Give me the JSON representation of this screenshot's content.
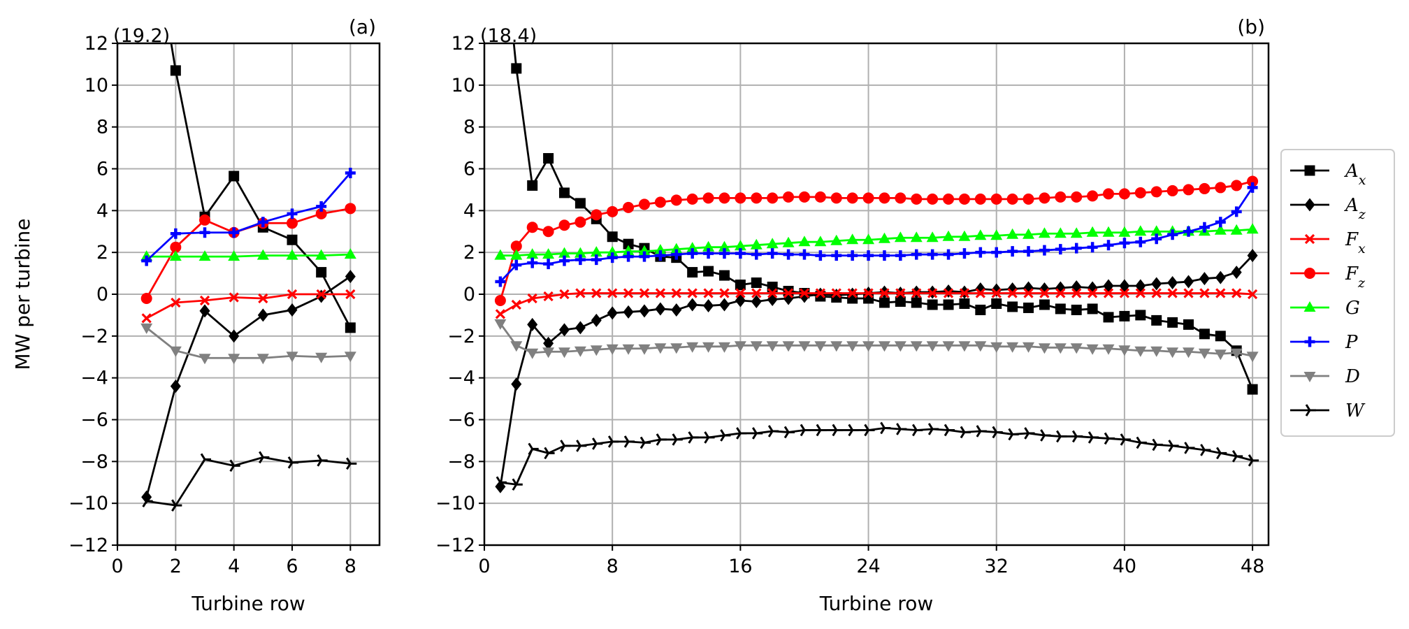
{
  "chart_data": [
    {
      "type": "line",
      "panel_label": "(a)",
      "clip_annotation": "(19.2)",
      "xlabel": "Turbine row",
      "ylabel": "MW per turbine",
      "xlim": [
        0,
        9
      ],
      "ylim": [
        -12,
        12
      ],
      "xticks": [
        0,
        2,
        4,
        6,
        8
      ],
      "yticks": [
        -12,
        -10,
        -8,
        -6,
        -4,
        -2,
        0,
        2,
        4,
        6,
        8,
        10,
        12
      ],
      "grid": true,
      "x": [
        1,
        2,
        3,
        4,
        5,
        6,
        7,
        8
      ],
      "series": [
        {
          "key": "Ax",
          "values": [
            19.2,
            10.7,
            3.7,
            5.65,
            3.2,
            2.6,
            1.05,
            -1.6
          ]
        },
        {
          "key": "Az",
          "values": [
            -9.7,
            -4.4,
            -0.8,
            -2.0,
            -1.0,
            -0.75,
            -0.1,
            0.85
          ]
        },
        {
          "key": "Fx",
          "values": [
            -1.15,
            -0.4,
            -0.3,
            -0.15,
            -0.2,
            0.0,
            0.0,
            0.0
          ]
        },
        {
          "key": "Fz",
          "values": [
            -0.2,
            2.25,
            3.55,
            2.95,
            3.4,
            3.4,
            3.85,
            4.1
          ]
        },
        {
          "key": "G",
          "values": [
            1.8,
            1.8,
            1.8,
            1.8,
            1.85,
            1.85,
            1.85,
            1.9
          ]
        },
        {
          "key": "P",
          "values": [
            1.6,
            2.9,
            2.95,
            2.95,
            3.45,
            3.85,
            4.2,
            5.8
          ]
        },
        {
          "key": "D",
          "values": [
            -1.6,
            -2.7,
            -3.05,
            -3.05,
            -3.05,
            -2.95,
            -3.0,
            -2.95
          ]
        },
        {
          "key": "W",
          "values": [
            -9.9,
            -10.1,
            -7.9,
            -8.2,
            -7.8,
            -8.05,
            -7.95,
            -8.1
          ]
        }
      ]
    },
    {
      "type": "line",
      "panel_label": "(b)",
      "clip_annotation": "(18.4)",
      "xlabel": "Turbine row",
      "ylabel": "",
      "xlim": [
        0,
        49
      ],
      "ylim": [
        -12,
        12
      ],
      "xticks": [
        0,
        8,
        16,
        24,
        32,
        40,
        48
      ],
      "yticks": [
        -12,
        -10,
        -8,
        -6,
        -4,
        -2,
        0,
        2,
        4,
        6,
        8,
        10,
        12
      ],
      "grid": true,
      "x": [
        1,
        2,
        3,
        4,
        5,
        6,
        7,
        8,
        9,
        10,
        11,
        12,
        13,
        14,
        15,
        16,
        17,
        18,
        19,
        20,
        21,
        22,
        23,
        24,
        25,
        26,
        27,
        28,
        29,
        30,
        31,
        32,
        33,
        34,
        35,
        36,
        37,
        38,
        39,
        40,
        41,
        42,
        43,
        44,
        45,
        46,
        47,
        48
      ],
      "series": [
        {
          "key": "Ax",
          "values": [
            18.4,
            10.8,
            5.2,
            6.5,
            4.85,
            4.35,
            3.6,
            2.75,
            2.4,
            2.2,
            1.8,
            1.75,
            1.05,
            1.1,
            0.9,
            0.45,
            0.55,
            0.35,
            0.15,
            0.05,
            -0.1,
            -0.15,
            -0.2,
            -0.2,
            -0.4,
            -0.35,
            -0.4,
            -0.5,
            -0.5,
            -0.45,
            -0.75,
            -0.45,
            -0.6,
            -0.65,
            -0.5,
            -0.7,
            -0.75,
            -0.7,
            -1.1,
            -1.05,
            -1.0,
            -1.25,
            -1.35,
            -1.45,
            -1.9,
            -2.0,
            -2.7,
            -4.55
          ]
        },
        {
          "key": "Az",
          "values": [
            -9.2,
            -4.3,
            -1.45,
            -2.35,
            -1.7,
            -1.6,
            -1.25,
            -0.9,
            -0.85,
            -0.8,
            -0.7,
            -0.75,
            -0.5,
            -0.55,
            -0.5,
            -0.3,
            -0.35,
            -0.25,
            -0.2,
            -0.1,
            0.0,
            -0.05,
            0.0,
            0.05,
            0.1,
            0.05,
            0.1,
            0.1,
            0.15,
            0.1,
            0.25,
            0.2,
            0.25,
            0.3,
            0.25,
            0.3,
            0.35,
            0.3,
            0.4,
            0.4,
            0.4,
            0.5,
            0.55,
            0.6,
            0.75,
            0.8,
            1.05,
            1.85
          ]
        },
        {
          "key": "Fx",
          "values": [
            -0.95,
            -0.5,
            -0.2,
            -0.1,
            0.0,
            0.05,
            0.05,
            0.05,
            0.05,
            0.05,
            0.05,
            0.05,
            0.05,
            0.05,
            0.05,
            0.05,
            0.05,
            0.05,
            0.05,
            0.05,
            0.05,
            0.05,
            0.05,
            0.05,
            0.05,
            0.05,
            0.05,
            0.05,
            0.05,
            0.05,
            0.05,
            0.05,
            0.05,
            0.05,
            0.05,
            0.05,
            0.05,
            0.05,
            0.05,
            0.05,
            0.05,
            0.05,
            0.05,
            0.05,
            0.05,
            0.05,
            0.05,
            0.0
          ]
        },
        {
          "key": "Fz",
          "values": [
            -0.3,
            2.3,
            3.2,
            3.0,
            3.3,
            3.45,
            3.8,
            3.95,
            4.15,
            4.3,
            4.4,
            4.5,
            4.55,
            4.6,
            4.6,
            4.6,
            4.6,
            4.6,
            4.65,
            4.65,
            4.65,
            4.6,
            4.6,
            4.6,
            4.6,
            4.6,
            4.55,
            4.55,
            4.55,
            4.55,
            4.55,
            4.55,
            4.55,
            4.55,
            4.6,
            4.65,
            4.65,
            4.7,
            4.8,
            4.8,
            4.85,
            4.9,
            4.95,
            5.0,
            5.05,
            5.1,
            5.2,
            5.4
          ]
        },
        {
          "key": "G",
          "values": [
            1.85,
            1.85,
            1.9,
            1.9,
            1.95,
            1.95,
            2.0,
            2.0,
            2.05,
            2.05,
            2.1,
            2.15,
            2.2,
            2.25,
            2.25,
            2.3,
            2.35,
            2.4,
            2.45,
            2.5,
            2.5,
            2.55,
            2.6,
            2.6,
            2.65,
            2.7,
            2.7,
            2.7,
            2.75,
            2.75,
            2.8,
            2.8,
            2.85,
            2.85,
            2.9,
            2.9,
            2.9,
            2.95,
            2.95,
            2.95,
            3.0,
            3.0,
            3.0,
            3.0,
            3.0,
            3.05,
            3.05,
            3.1
          ]
        },
        {
          "key": "P",
          "values": [
            0.6,
            1.4,
            1.5,
            1.45,
            1.6,
            1.65,
            1.65,
            1.75,
            1.8,
            1.8,
            1.85,
            1.9,
            1.95,
            1.95,
            1.95,
            1.95,
            1.9,
            1.95,
            1.9,
            1.9,
            1.85,
            1.85,
            1.85,
            1.85,
            1.85,
            1.85,
            1.9,
            1.9,
            1.9,
            1.95,
            2.0,
            2.0,
            2.05,
            2.05,
            2.1,
            2.15,
            2.2,
            2.25,
            2.35,
            2.45,
            2.5,
            2.65,
            2.85,
            3.0,
            3.2,
            3.45,
            3.95,
            5.1
          ]
        },
        {
          "key": "D",
          "values": [
            -1.4,
            -2.45,
            -2.8,
            -2.75,
            -2.75,
            -2.7,
            -2.65,
            -2.6,
            -2.6,
            -2.6,
            -2.55,
            -2.55,
            -2.5,
            -2.5,
            -2.5,
            -2.45,
            -2.45,
            -2.45,
            -2.45,
            -2.45,
            -2.45,
            -2.45,
            -2.45,
            -2.45,
            -2.45,
            -2.45,
            -2.45,
            -2.45,
            -2.45,
            -2.45,
            -2.45,
            -2.5,
            -2.5,
            -2.5,
            -2.55,
            -2.55,
            -2.55,
            -2.6,
            -2.6,
            -2.65,
            -2.7,
            -2.7,
            -2.75,
            -2.75,
            -2.8,
            -2.85,
            -2.8,
            -2.95
          ]
        },
        {
          "key": "W",
          "values": [
            -9.0,
            -9.1,
            -7.4,
            -7.6,
            -7.25,
            -7.25,
            -7.15,
            -7.05,
            -7.05,
            -7.1,
            -6.95,
            -6.95,
            -6.85,
            -6.85,
            -6.75,
            -6.65,
            -6.65,
            -6.55,
            -6.6,
            -6.5,
            -6.5,
            -6.5,
            -6.5,
            -6.5,
            -6.4,
            -6.45,
            -6.5,
            -6.45,
            -6.5,
            -6.6,
            -6.55,
            -6.6,
            -6.7,
            -6.65,
            -6.75,
            -6.8,
            -6.8,
            -6.85,
            -6.9,
            -6.95,
            -7.1,
            -7.2,
            -7.25,
            -7.35,
            -7.45,
            -7.6,
            -7.75,
            -7.95
          ]
        }
      ]
    }
  ],
  "series_style": [
    {
      "key": "Ax",
      "label_main": "A",
      "label_sub": "x",
      "color": "#000000",
      "marker": "square"
    },
    {
      "key": "Az",
      "label_main": "A",
      "label_sub": "z",
      "color": "#000000",
      "marker": "diamond"
    },
    {
      "key": "Fx",
      "label_main": "F",
      "label_sub": "x",
      "color": "#ff0000",
      "marker": "x"
    },
    {
      "key": "Fz",
      "label_main": "F",
      "label_sub": "z",
      "color": "#ff0000",
      "marker": "circle"
    },
    {
      "key": "G",
      "label_main": "G",
      "label_sub": "",
      "color": "#00ff00",
      "marker": "triangle-up"
    },
    {
      "key": "P",
      "label_main": "P",
      "label_sub": "",
      "color": "#0000ff",
      "marker": "plus"
    },
    {
      "key": "D",
      "label_main": "D",
      "label_sub": "",
      "color": "#808080",
      "marker": "triangle-down"
    },
    {
      "key": "W",
      "label_main": "W",
      "label_sub": "",
      "color": "#000000",
      "marker": "tri-right"
    }
  ],
  "legend": {
    "placement": "right"
  }
}
